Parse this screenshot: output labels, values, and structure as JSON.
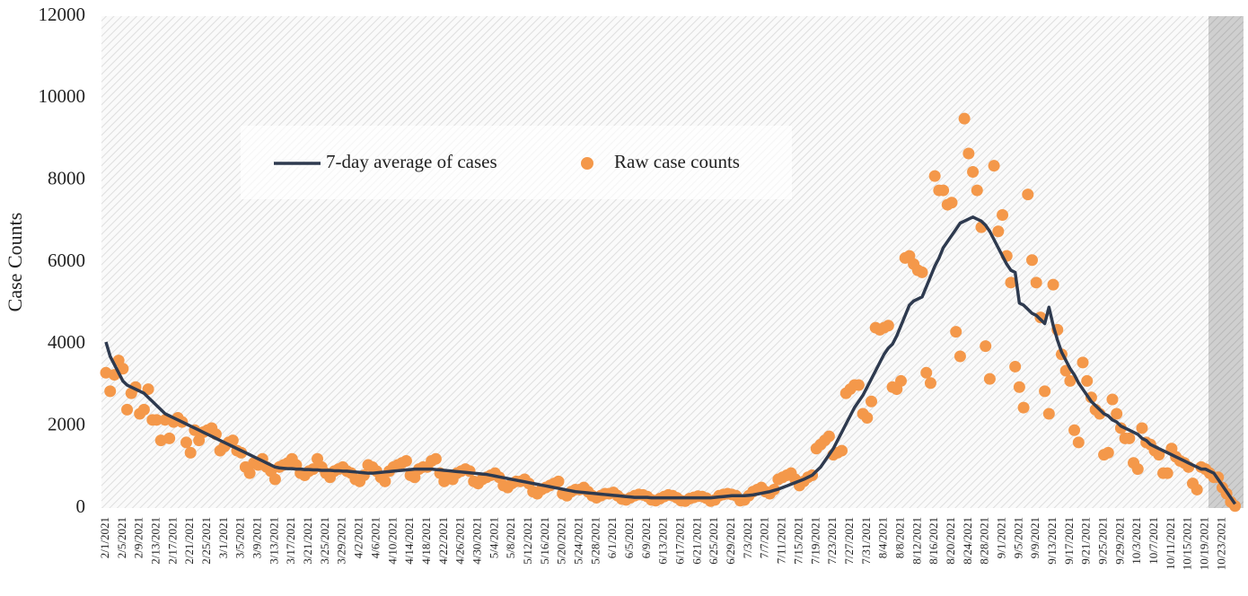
{
  "chart_data": {
    "type": "line-scatter",
    "ylabel": "Case Counts",
    "ylim": [
      0,
      12000
    ],
    "yticks": [
      0,
      2000,
      4000,
      6000,
      8000,
      10000,
      12000
    ],
    "categories": [
      "2/1/2021",
      null,
      null,
      null,
      "2/5/2021",
      null,
      null,
      null,
      "2/9/2021",
      null,
      null,
      null,
      "2/13/2021",
      null,
      null,
      null,
      "2/17/2021",
      null,
      null,
      null,
      "2/21/2021",
      null,
      null,
      null,
      "2/25/2021",
      null,
      null,
      null,
      "3/1/2021",
      null,
      null,
      null,
      "3/5/2021",
      null,
      null,
      null,
      "3/9/2021",
      null,
      null,
      null,
      "3/13/2021",
      null,
      null,
      null,
      "3/17/2021",
      null,
      null,
      null,
      "3/21/2021",
      null,
      null,
      null,
      "3/25/2021",
      null,
      null,
      null,
      "3/29/2021",
      null,
      null,
      null,
      "4/2/2021",
      null,
      null,
      null,
      "4/6/2021",
      null,
      null,
      null,
      "4/10/2021",
      null,
      null,
      null,
      "4/14/2021",
      null,
      null,
      null,
      "4/18/2021",
      null,
      null,
      null,
      "4/22/2021",
      null,
      null,
      null,
      "4/26/2021",
      null,
      null,
      null,
      "4/30/2021",
      null,
      null,
      null,
      "5/4/2021",
      null,
      null,
      null,
      "5/8/2021",
      null,
      null,
      null,
      "5/12/2021",
      null,
      null,
      null,
      "5/16/2021",
      null,
      null,
      null,
      "5/20/2021",
      null,
      null,
      null,
      "5/24/2021",
      null,
      null,
      null,
      "5/28/2021",
      null,
      null,
      null,
      "6/1/2021",
      null,
      null,
      null,
      "6/5/2021",
      null,
      null,
      null,
      "6/9/2021",
      null,
      null,
      null,
      "6/13/2021",
      null,
      null,
      null,
      "6/17/2021",
      null,
      null,
      null,
      "6/21/2021",
      null,
      null,
      null,
      "6/25/2021",
      null,
      null,
      null,
      "6/29/2021",
      null,
      null,
      null,
      "7/3/2021",
      null,
      null,
      null,
      "7/7/2021",
      null,
      null,
      null,
      "7/11/2021",
      null,
      null,
      null,
      "7/15/2021",
      null,
      null,
      null,
      "7/19/2021",
      null,
      null,
      null,
      "7/23/2021",
      null,
      null,
      null,
      "7/27/2021",
      null,
      null,
      null,
      "7/31/2021",
      null,
      null,
      null,
      "8/4/2021",
      null,
      null,
      null,
      "8/8/2021",
      null,
      null,
      null,
      "8/12/2021",
      null,
      null,
      null,
      "8/16/2021",
      null,
      null,
      null,
      "8/20/2021",
      null,
      null,
      null,
      "8/24/2021",
      null,
      null,
      null,
      "8/28/2021",
      null,
      null,
      null,
      "9/1/2021",
      null,
      null,
      null,
      "9/5/2021",
      null,
      null,
      null,
      "9/9/2021",
      null,
      null,
      null,
      "9/13/2021",
      null,
      null,
      null,
      "9/17/2021",
      null,
      null,
      null,
      "9/21/2021",
      null,
      null,
      null,
      "9/25/2021",
      null,
      null,
      null,
      "9/29/2021",
      null,
      null,
      null,
      "10/3/2021",
      null,
      null,
      null,
      "10/7/2021",
      null,
      null,
      null,
      "10/11/2021",
      null,
      null,
      null,
      "10/15/2021",
      null,
      null,
      null,
      "10/19/2021",
      null,
      null,
      null,
      "10/23/2021",
      null,
      null,
      null
    ],
    "series": [
      {
        "name": "7-day average of cases",
        "type": "line",
        "color": "#2e3a4f",
        "values": [
          4050,
          3700,
          3500,
          3300,
          3100,
          3000,
          2950,
          2900,
          2850,
          2800,
          2700,
          2600,
          2500,
          2400,
          2300,
          2250,
          2200,
          2150,
          2100,
          2050,
          2000,
          1950,
          1900,
          1850,
          1800,
          1750,
          1700,
          1650,
          1600,
          1550,
          1500,
          1450,
          1400,
          1350,
          1300,
          1250,
          1200,
          1150,
          1100,
          1050,
          1000,
          980,
          970,
          960,
          960,
          950,
          950,
          940,
          940,
          930,
          930,
          920,
          920,
          920,
          910,
          910,
          900,
          900,
          890,
          880,
          870,
          860,
          850,
          850,
          860,
          870,
          880,
          890,
          900,
          910,
          920,
          930,
          940,
          950,
          950,
          950,
          950,
          950,
          940,
          930,
          920,
          910,
          900,
          890,
          880,
          870,
          860,
          850,
          840,
          830,
          820,
          800,
          780,
          760,
          740,
          720,
          700,
          680,
          660,
          640,
          620,
          600,
          580,
          560,
          540,
          520,
          500,
          480,
          460,
          440,
          420,
          400,
          390,
          380,
          370,
          360,
          350,
          340,
          330,
          320,
          310,
          300,
          290,
          280,
          270,
          260,
          260,
          260,
          260,
          250,
          250,
          250,
          250,
          250,
          250,
          250,
          250,
          250,
          250,
          250,
          250,
          250,
          250,
          250,
          260,
          270,
          280,
          290,
          300,
          300,
          300,
          300,
          310,
          320,
          340,
          360,
          380,
          400,
          430,
          460,
          500,
          540,
          580,
          620,
          660,
          700,
          750,
          800,
          900,
          1000,
          1150,
          1300,
          1450,
          1650,
          1850,
          2050,
          2250,
          2450,
          2600,
          2750,
          2950,
          3150,
          3350,
          3550,
          3750,
          3900,
          4000,
          4200,
          4450,
          4700,
          4950,
          5050,
          5100,
          5150,
          5400,
          5650,
          5900,
          6100,
          6350,
          6500,
          6650,
          6800,
          6950,
          7000,
          7050,
          7100,
          7050,
          7000,
          6900,
          6750,
          6550,
          6350,
          6150,
          5950,
          5800,
          5750,
          5000,
          4950,
          4850,
          4750,
          4700,
          4600,
          4500,
          4900,
          4450,
          4100,
          3800,
          3600,
          3400,
          3250,
          3050,
          2900,
          2750,
          2600,
          2500,
          2400,
          2300,
          2250,
          2150,
          2100,
          2000,
          1950,
          1900,
          1850,
          1800,
          1700,
          1650,
          1550,
          1500,
          1450,
          1400,
          1350,
          1300,
          1250,
          1200,
          1150,
          1100,
          1050,
          1000,
          950,
          950,
          900,
          850,
          700,
          550,
          400,
          250,
          100
        ]
      },
      {
        "name": "Raw case counts",
        "type": "scatter",
        "color": "#f4984a",
        "values": [
          3300,
          2850,
          3250,
          3600,
          3400,
          2400,
          2800,
          2950,
          2300,
          2400,
          2900,
          2150,
          2150,
          1650,
          2150,
          1700,
          2100,
          2200,
          2100,
          1600,
          1350,
          1900,
          1650,
          1850,
          1900,
          1950,
          1800,
          1400,
          1500,
          1600,
          1650,
          1400,
          1350,
          1000,
          850,
          1100,
          1050,
          1200,
          1000,
          900,
          700,
          1000,
          1050,
          1100,
          1200,
          1050,
          850,
          800,
          900,
          950,
          1200,
          1000,
          850,
          750,
          900,
          950,
          1000,
          900,
          850,
          700,
          650,
          800,
          1050,
          1000,
          900,
          750,
          650,
          900,
          1000,
          1050,
          1100,
          1150,
          800,
          750,
          950,
          1000,
          1000,
          1150,
          1200,
          850,
          650,
          800,
          700,
          850,
          900,
          950,
          900,
          650,
          600,
          700,
          750,
          800,
          850,
          750,
          550,
          500,
          600,
          650,
          650,
          700,
          600,
          400,
          350,
          450,
          500,
          550,
          600,
          650,
          350,
          300,
          400,
          450,
          450,
          500,
          400,
          300,
          250,
          300,
          350,
          350,
          380,
          300,
          220,
          200,
          250,
          300,
          330,
          320,
          280,
          200,
          180,
          230,
          280,
          320,
          300,
          250,
          180,
          170,
          230,
          260,
          290,
          280,
          240,
          170,
          200,
          300,
          330,
          350,
          330,
          300,
          180,
          200,
          300,
          400,
          450,
          500,
          400,
          350,
          450,
          700,
          750,
          800,
          850,
          700,
          550,
          650,
          750,
          800,
          1450,
          1550,
          1650,
          1750,
          1300,
          1350,
          1400,
          2800,
          2900,
          3000,
          3000,
          2300,
          2200,
          2600,
          4400,
          4350,
          4400,
          4450,
          2950,
          2900,
          3100,
          6100,
          6150,
          5950,
          5800,
          5750,
          3300,
          3050,
          8100,
          7750,
          7750,
          7400,
          7450,
          4300,
          3700,
          9500,
          8650,
          8200,
          7750,
          6850,
          3950,
          3150,
          8350,
          6750,
          7150,
          6150,
          5500,
          3450,
          2950,
          2450,
          7650,
          6050,
          5500,
          4650,
          2850,
          2300,
          5450,
          4350,
          3750,
          3350,
          3100,
          1900,
          1600,
          3550,
          3100,
          2700,
          2400,
          2300,
          1300,
          1350,
          2650,
          2300,
          1950,
          1700,
          1700,
          1100,
          950,
          1950,
          1600,
          1550,
          1400,
          1300,
          850,
          850,
          1450,
          1250,
          1150,
          1100,
          1000,
          600,
          450,
          1000,
          950,
          850,
          750,
          750,
          500,
          350,
          150,
          50
        ]
      }
    ]
  }
}
